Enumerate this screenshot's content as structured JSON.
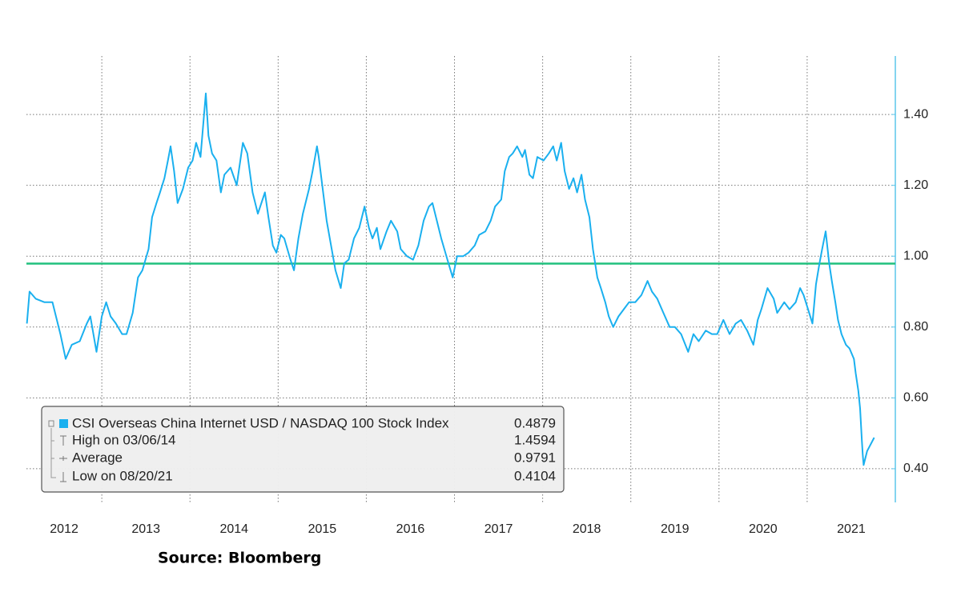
{
  "chart_data": {
    "type": "line",
    "source": "Source:  Bloomberg",
    "xlim": [
      2012.145,
      2022.0
    ],
    "xticks": [
      2012,
      2013,
      2014,
      2015,
      2016,
      2017,
      2018,
      2019,
      2020,
      2021
    ],
    "ylim": [
      0.305,
      1.565
    ],
    "yticks": [
      {
        "value": 0.4,
        "label": "0.40"
      },
      {
        "value": 0.6,
        "label": "0.60"
      },
      {
        "value": 0.8,
        "label": "0.80"
      },
      {
        "value": 1.0,
        "label": "1.00"
      },
      {
        "value": 1.2,
        "label": "1.20"
      },
      {
        "value": 1.4,
        "label": "1.40"
      }
    ],
    "grid": true,
    "legend": "bottom-left",
    "average": {
      "label": "Average",
      "value": 0.9791,
      "color": "#21c07e"
    },
    "high": {
      "label": "High on 03/06/14",
      "value": 1.4594
    },
    "low": {
      "label": "Low on 08/20/21",
      "value": 0.4104
    },
    "last_value": 0.4879,
    "series": [
      {
        "name": "CSI Overseas China Internet USD / NASDAQ 100 Stock Index",
        "color": "#1ab0ef",
        "x": [
          2012.15,
          2012.18,
          2012.25,
          2012.35,
          2012.44,
          2012.48,
          2012.53,
          2012.59,
          2012.66,
          2012.75,
          2012.83,
          2012.87,
          2012.94,
          2013.0,
          2013.05,
          2013.1,
          2013.16,
          2013.23,
          2013.28,
          2013.35,
          2013.41,
          2013.46,
          2013.53,
          2013.57,
          2013.62,
          2013.66,
          2013.71,
          2013.75,
          2013.78,
          2013.82,
          2013.86,
          2013.92,
          2013.98,
          2014.03,
          2014.07,
          2014.12,
          2014.18,
          2014.21,
          2014.25,
          2014.3,
          2014.35,
          2014.39,
          2014.46,
          2014.53,
          2014.6,
          2014.65,
          2014.71,
          2014.77,
          2014.85,
          2014.89,
          2014.94,
          2014.98,
          2015.03,
          2015.07,
          2015.14,
          2015.18,
          2015.23,
          2015.28,
          2015.35,
          2015.39,
          2015.44,
          2015.46,
          2015.51,
          2015.55,
          2015.6,
          2015.65,
          2015.71,
          2015.75,
          2015.8,
          2015.86,
          2015.92,
          2015.98,
          2016.03,
          2016.07,
          2016.12,
          2016.16,
          2016.23,
          2016.28,
          2016.35,
          2016.39,
          2016.46,
          2016.53,
          2016.59,
          2016.65,
          2016.71,
          2016.75,
          2016.8,
          2016.85,
          2016.92,
          2016.98,
          2017.03,
          2017.1,
          2017.16,
          2017.23,
          2017.28,
          2017.35,
          2017.41,
          2017.46,
          2017.53,
          2017.57,
          2017.62,
          2017.66,
          2017.71,
          2017.77,
          2017.8,
          2017.85,
          2017.89,
          2017.94,
          2018.01,
          2018.07,
          2018.12,
          2018.16,
          2018.21,
          2018.25,
          2018.3,
          2018.35,
          2018.39,
          2018.44,
          2018.48,
          2018.53,
          2018.57,
          2018.62,
          2018.66,
          2018.71,
          2018.75,
          2018.8,
          2018.86,
          2018.92,
          2018.98,
          2019.05,
          2019.12,
          2019.19,
          2019.24,
          2019.3,
          2019.37,
          2019.44,
          2019.5,
          2019.57,
          2019.65,
          2019.71,
          2019.77,
          2019.85,
          2019.92,
          2019.98,
          2020.05,
          2020.12,
          2020.19,
          2020.25,
          2020.32,
          2020.39,
          2020.44,
          2020.48,
          2020.55,
          2020.62,
          2020.66,
          2020.74,
          2020.8,
          2020.87,
          2020.92,
          2020.96,
          2021.01,
          2021.06,
          2021.1,
          2021.14,
          2021.17,
          2021.21,
          2021.25,
          2021.28,
          2021.32,
          2021.35,
          2021.39,
          2021.44,
          2021.48,
          2021.53,
          2021.55,
          2021.58,
          2021.6,
          2021.62,
          2021.63,
          2021.64,
          2021.68,
          2021.76
        ],
        "values": [
          0.81,
          0.9,
          0.88,
          0.87,
          0.87,
          0.83,
          0.78,
          0.71,
          0.75,
          0.76,
          0.81,
          0.83,
          0.73,
          0.83,
          0.87,
          0.83,
          0.81,
          0.78,
          0.78,
          0.84,
          0.94,
          0.96,
          1.02,
          1.11,
          1.15,
          1.18,
          1.22,
          1.27,
          1.31,
          1.24,
          1.15,
          1.19,
          1.25,
          1.27,
          1.32,
          1.28,
          1.4594,
          1.34,
          1.29,
          1.27,
          1.18,
          1.23,
          1.25,
          1.2,
          1.32,
          1.29,
          1.18,
          1.12,
          1.18,
          1.11,
          1.03,
          1.01,
          1.06,
          1.05,
          0.99,
          0.96,
          1.05,
          1.12,
          1.19,
          1.24,
          1.31,
          1.28,
          1.18,
          1.1,
          1.03,
          0.96,
          0.91,
          0.98,
          0.99,
          1.05,
          1.08,
          1.14,
          1.08,
          1.05,
          1.08,
          1.02,
          1.07,
          1.1,
          1.07,
          1.02,
          1.0,
          0.99,
          1.03,
          1.1,
          1.14,
          1.15,
          1.1,
          1.05,
          0.99,
          0.94,
          1.0,
          1.0,
          1.01,
          1.03,
          1.06,
          1.07,
          1.1,
          1.14,
          1.16,
          1.24,
          1.28,
          1.29,
          1.31,
          1.28,
          1.3,
          1.23,
          1.22,
          1.28,
          1.27,
          1.29,
          1.31,
          1.27,
          1.32,
          1.24,
          1.19,
          1.22,
          1.18,
          1.23,
          1.16,
          1.11,
          1.02,
          0.94,
          0.91,
          0.87,
          0.83,
          0.8,
          0.83,
          0.85,
          0.87,
          0.87,
          0.89,
          0.93,
          0.9,
          0.88,
          0.84,
          0.8,
          0.8,
          0.78,
          0.73,
          0.78,
          0.76,
          0.79,
          0.78,
          0.78,
          0.82,
          0.78,
          0.81,
          0.82,
          0.79,
          0.75,
          0.82,
          0.85,
          0.91,
          0.88,
          0.84,
          0.87,
          0.85,
          0.87,
          0.91,
          0.89,
          0.85,
          0.81,
          0.92,
          0.98,
          1.02,
          1.07,
          0.98,
          0.93,
          0.87,
          0.82,
          0.78,
          0.75,
          0.74,
          0.71,
          0.67,
          0.62,
          0.57,
          0.48,
          0.44,
          0.4104,
          0.45,
          0.4879
        ]
      }
    ]
  }
}
